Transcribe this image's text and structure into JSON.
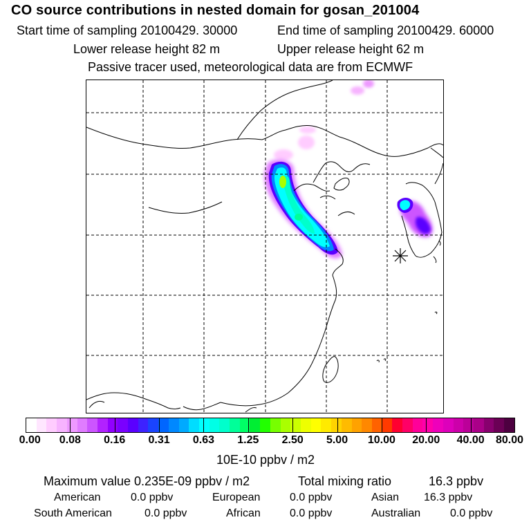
{
  "header": {
    "title": "CO  source contributions in nested domain for gosan_201004",
    "start_label": "Start time of sampling 20100429. 30000",
    "end_label": "End time of sampling 20100429. 60000",
    "lower_label": "Lower release height   82 m",
    "upper_label": "Upper release height   62 m",
    "tracer_note": "Passive tracer used, meteorological data are from ECMWF"
  },
  "map": {
    "grid": "dashed lat/lon grid",
    "receptor_marker": "gosan-receptor"
  },
  "colorbar": {
    "ticks": [
      "0.00",
      "0.08",
      "0.16",
      "0.31",
      "0.63",
      "1.25",
      "2.50",
      "5.00",
      "10.00",
      "20.00",
      "40.00",
      "80.00"
    ],
    "colors": [
      "#ffffff",
      "#ffe6ff",
      "#ffccff",
      "#f7b3ff",
      "#ee99ff",
      "#e07cff",
      "#cc55ff",
      "#b222ff",
      "#9100ff",
      "#7a00ff",
      "#5a00ff",
      "#3d22ff",
      "#1a44ff",
      "#0066ff",
      "#0088ff",
      "#00aaff",
      "#00ddff",
      "#00ffff",
      "#00ffe6",
      "#00ffcc",
      "#00ff99",
      "#00ff66",
      "#00ee33",
      "#22ff00",
      "#77ff00",
      "#aaff00",
      "#ccff00",
      "#eeff00",
      "#ffff00",
      "#ffea00",
      "#ffd400",
      "#ffbb00",
      "#ffa200",
      "#ff8800",
      "#ff6200",
      "#ff3a00",
      "#ff0030",
      "#ff0066",
      "#ff0099",
      "#ff00aa",
      "#ee00bb",
      "#dd00bb",
      "#cc00aa",
      "#bb0099",
      "#aa0088",
      "#88006e",
      "#6b0055",
      "#4d0040"
    ],
    "units": "10E-10 ppbv / m2"
  },
  "stats": {
    "max_label": "Maximum value  0.235E-09 ppbv / m2",
    "total_label": "Total mixing ratio",
    "total_value": "16.3 ppbv",
    "american_label": "American",
    "american_value": "0.0 ppbv",
    "european_label": "European",
    "european_value": "0.0 ppbv",
    "asian_label": "Asian",
    "asian_value": "16.3 ppbv",
    "south_american_label": "South American",
    "south_american_value": "0.0 ppbv",
    "african_label": "African",
    "african_value": "0.0 ppbv",
    "australian_label": "Australian",
    "australian_value": "0.0 ppbv"
  },
  "colors": {
    "grid": "#000000",
    "coast": "#000000"
  }
}
